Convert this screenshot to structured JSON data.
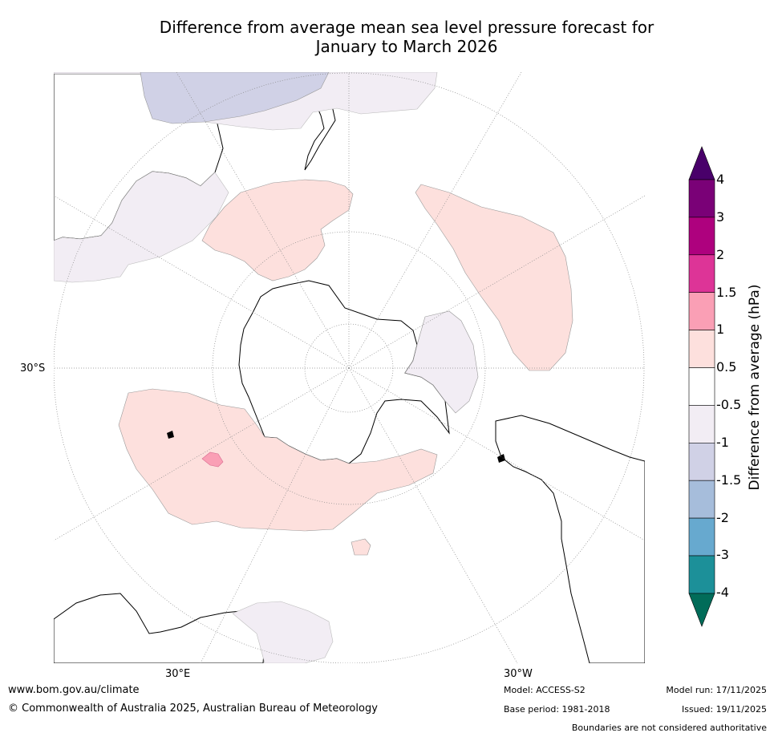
{
  "title": {
    "line1": "Difference from average mean sea level pressure forecast for",
    "line2": "January to March 2026"
  },
  "map": {
    "projection": "south-polar stereographic",
    "longitude_labels": {
      "east": "30°E",
      "west": "30°W",
      "south": "30°S"
    },
    "fill_colors": {
      "land_outline": "#000000",
      "minus_0_5_to_minus_1": "#f2edf4",
      "minus_1_to_minus_1_5": "#d0d1e6",
      "plus_0_5_to_1": "#fde0dd",
      "plus_1_to_1_5": "#fa9fb5"
    }
  },
  "colorbar": {
    "title": "Difference from average (hPa)",
    "tick_labels": [
      "4",
      "3",
      "2",
      "1.5",
      "1",
      "0.5",
      "-0.5",
      "-1",
      "-1.5",
      "-2",
      "-3",
      "-4"
    ],
    "colors": [
      "#49006a",
      "#7a0177",
      "#ae017e",
      "#dd3497",
      "#fa9fb5",
      "#fde0dd",
      "#ffffff",
      "#f2edf4",
      "#d0d1e6",
      "#a6bddb",
      "#67a9cf",
      "#1c9099",
      "#016c59"
    ]
  },
  "footer": {
    "url": "www.bom.gov.au/climate",
    "copyright": "© Commonwealth of Australia 2025, Australian Bureau of Meteorology",
    "model": "Model: ACCESS-S2",
    "model_run": "Model run: 17/11/2025",
    "base_period": "Base period: 1981-2018",
    "issued": "Issued: 19/11/2025",
    "disclaimer": "Boundaries are not considered authoritative"
  }
}
